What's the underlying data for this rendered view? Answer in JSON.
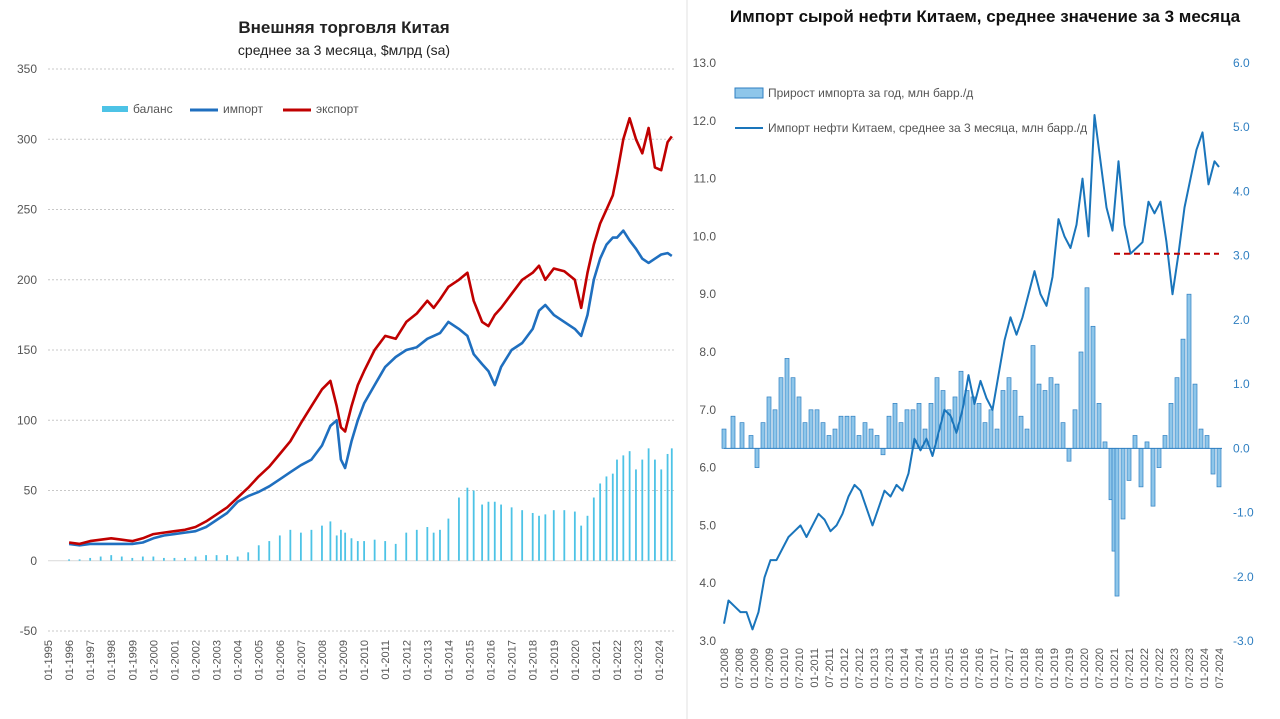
{
  "chart_data": [
    {
      "type": "line",
      "title": "Внешняя торговля Китая",
      "subtitle": "среднее за 3 месяца, $млрд (sa)",
      "ylim": [
        -50,
        350
      ],
      "yticks": [
        -50,
        0,
        50,
        100,
        150,
        200,
        250,
        300,
        350
      ],
      "xlim": [
        1995,
        2024.8
      ],
      "xticks": [
        "01-1995",
        "01-1996",
        "01-1997",
        "01-1998",
        "01-1999",
        "01-2000",
        "01-2001",
        "01-2002",
        "01-2003",
        "01-2004",
        "01-2005",
        "01-2006",
        "01-2007",
        "01-2008",
        "01-2009",
        "01-2010",
        "01-2011",
        "01-2012",
        "01-2013",
        "01-2014",
        "01-2015",
        "01-2016",
        "01-2017",
        "01-2018",
        "01-2019",
        "01-2020",
        "01-2021",
        "01-2022",
        "01-2023",
        "01-2024"
      ],
      "grid": true,
      "legend": {
        "placement": "top-left",
        "entries": [
          "баланс",
          "импорт",
          "экспорт"
        ]
      },
      "colors": {
        "balance": "#4dc3e6",
        "import": "#1f6fbf",
        "export": "#c00000"
      },
      "series": [
        {
          "name": "экспорт",
          "type": "line",
          "x": [
            1996.0,
            1996.5,
            1997.0,
            1997.5,
            1998.0,
            1998.5,
            1999.0,
            1999.5,
            2000.0,
            2000.5,
            2001.0,
            2001.5,
            2002.0,
            2002.5,
            2003.0,
            2003.5,
            2004.0,
            2004.5,
            2005.0,
            2005.5,
            2006.0,
            2006.5,
            2007.0,
            2007.5,
            2008.0,
            2008.4,
            2008.7,
            2008.9,
            2009.1,
            2009.4,
            2009.7,
            2010.0,
            2010.5,
            2011.0,
            2011.5,
            2012.0,
            2012.5,
            2013.0,
            2013.3,
            2013.6,
            2014.0,
            2014.5,
            2014.9,
            2015.2,
            2015.6,
            2015.9,
            2016.2,
            2016.5,
            2017.0,
            2017.5,
            2018.0,
            2018.3,
            2018.6,
            2019.0,
            2019.5,
            2020.0,
            2020.3,
            2020.6,
            2020.9,
            2021.2,
            2021.5,
            2021.8,
            2022.0,
            2022.3,
            2022.6,
            2022.9,
            2023.2,
            2023.5,
            2023.8,
            2024.1,
            2024.4,
            2024.6
          ],
          "values": [
            13,
            12,
            14,
            15,
            16,
            15,
            14,
            16,
            19,
            20,
            21,
            22,
            24,
            28,
            33,
            38,
            45,
            52,
            60,
            67,
            76,
            85,
            98,
            110,
            122,
            128,
            110,
            95,
            92,
            110,
            125,
            135,
            150,
            160,
            158,
            170,
            176,
            185,
            180,
            186,
            195,
            200,
            205,
            185,
            170,
            167,
            175,
            180,
            190,
            200,
            205,
            210,
            200,
            208,
            206,
            200,
            180,
            205,
            225,
            240,
            250,
            260,
            275,
            300,
            315,
            300,
            290,
            308,
            280,
            278,
            298,
            302
          ]
        },
        {
          "name": "импорт",
          "type": "line",
          "x": [
            1996.0,
            1996.5,
            1997.0,
            1997.5,
            1998.0,
            1998.5,
            1999.0,
            1999.5,
            2000.0,
            2000.5,
            2001.0,
            2001.5,
            2002.0,
            2002.5,
            2003.0,
            2003.5,
            2004.0,
            2004.5,
            2005.0,
            2005.5,
            2006.0,
            2006.5,
            2007.0,
            2007.5,
            2008.0,
            2008.4,
            2008.7,
            2008.9,
            2009.1,
            2009.4,
            2009.7,
            2010.0,
            2010.5,
            2011.0,
            2011.5,
            2012.0,
            2012.5,
            2013.0,
            2013.3,
            2013.6,
            2014.0,
            2014.5,
            2014.9,
            2015.2,
            2015.6,
            2015.9,
            2016.2,
            2016.5,
            2017.0,
            2017.5,
            2018.0,
            2018.3,
            2018.6,
            2019.0,
            2019.5,
            2020.0,
            2020.3,
            2020.6,
            2020.9,
            2021.2,
            2021.5,
            2021.8,
            2022.0,
            2022.3,
            2022.6,
            2022.9,
            2023.2,
            2023.5,
            2023.8,
            2024.1,
            2024.4,
            2024.6
          ],
          "values": [
            12,
            11,
            12,
            12,
            12,
            12,
            12,
            13,
            16,
            18,
            19,
            20,
            21,
            24,
            29,
            34,
            42,
            46,
            49,
            53,
            58,
            63,
            68,
            72,
            82,
            96,
            100,
            72,
            66,
            85,
            100,
            112,
            125,
            138,
            145,
            150,
            152,
            158,
            160,
            162,
            170,
            165,
            160,
            147,
            140,
            135,
            125,
            138,
            150,
            155,
            165,
            178,
            182,
            175,
            170,
            165,
            160,
            175,
            200,
            215,
            225,
            230,
            230,
            235,
            228,
            222,
            215,
            212,
            215,
            218,
            219,
            217
          ]
        },
        {
          "name": "баланс",
          "type": "bar",
          "x": [
            1996.0,
            1996.5,
            1997.0,
            1997.5,
            1998.0,
            1998.5,
            1999.0,
            1999.5,
            2000.0,
            2000.5,
            2001.0,
            2001.5,
            2002.0,
            2002.5,
            2003.0,
            2003.5,
            2004.0,
            2004.5,
            2005.0,
            2005.5,
            2006.0,
            2006.5,
            2007.0,
            2007.5,
            2008.0,
            2008.4,
            2008.7,
            2008.9,
            2009.1,
            2009.4,
            2009.7,
            2010.0,
            2010.5,
            2011.0,
            2011.5,
            2012.0,
            2012.5,
            2013.0,
            2013.3,
            2013.6,
            2014.0,
            2014.5,
            2014.9,
            2015.2,
            2015.6,
            2015.9,
            2016.2,
            2016.5,
            2017.0,
            2017.5,
            2018.0,
            2018.3,
            2018.6,
            2019.0,
            2019.5,
            2020.0,
            2020.3,
            2020.6,
            2020.9,
            2021.2,
            2021.5,
            2021.8,
            2022.0,
            2022.3,
            2022.6,
            2022.9,
            2023.2,
            2023.5,
            2023.8,
            2024.1,
            2024.4,
            2024.6
          ],
          "values": [
            1,
            1,
            2,
            3,
            4,
            3,
            2,
            3,
            3,
            2,
            2,
            2,
            3,
            4,
            4,
            4,
            3,
            6,
            11,
            14,
            18,
            22,
            20,
            22,
            25,
            28,
            18,
            22,
            20,
            16,
            14,
            14,
            15,
            14,
            12,
            20,
            22,
            24,
            20,
            22,
            30,
            45,
            52,
            50,
            40,
            42,
            42,
            40,
            38,
            36,
            34,
            32,
            33,
            36,
            36,
            35,
            25,
            32,
            45,
            55,
            60,
            62,
            72,
            75,
            78,
            65,
            72,
            80,
            72,
            65,
            76,
            80
          ]
        }
      ]
    },
    {
      "type": "bar",
      "title": "Импорт сырой нефти Китаем, среднее значение за 3 месяца",
      "ylim_left": [
        3.0,
        13.0
      ],
      "yticks_left": [
        3.0,
        4.0,
        5.0,
        6.0,
        7.0,
        8.0,
        9.0,
        10.0,
        11.0,
        12.0,
        13.0
      ],
      "ylim_right": [
        -3.0,
        6.0
      ],
      "yticks_right": [
        -3.0,
        -2.0,
        -1.0,
        0.0,
        1.0,
        2.0,
        3.0,
        4.0,
        5.0,
        6.0
      ],
      "xlim": [
        2008.0,
        2024.6
      ],
      "xticks": [
        "01-2008",
        "07-2008",
        "01-2009",
        "07-2009",
        "01-2010",
        "07-2010",
        "01-2011",
        "07-2011",
        "01-2012",
        "07-2012",
        "01-2013",
        "07-2013",
        "01-2014",
        "07-2014",
        "01-2015",
        "07-2015",
        "01-2016",
        "07-2016",
        "01-2017",
        "07-2017",
        "01-2018",
        "07-2018",
        "01-2019",
        "07-2019",
        "01-2020",
        "07-2020",
        "01-2021",
        "07-2021",
        "01-2022",
        "07-2022",
        "01-2023",
        "07-2023",
        "01-2024",
        "07-2024"
      ],
      "grid": false,
      "legend": {
        "placement": "top-left",
        "entries": [
          "Прирост импорта за год, млн барр./д",
          "Импорт нефти Китаем, среднее за 3 месяца, млн барр./д"
        ]
      },
      "colors": {
        "bars": "#8ec6ea",
        "bar_edge": "#2f7fc1",
        "line": "#1a75bb",
        "reference": "#c00000"
      },
      "reference_line": {
        "value": 9.7,
        "x_from": 2021.0,
        "x_to": 2024.5
      },
      "series": [
        {
          "name": "Импорт нефти Китаем, среднее за 3 месяца, млн барр./д",
          "axis": "left",
          "type": "line",
          "x": [
            2008.0,
            2008.15,
            2008.35,
            2008.55,
            2008.75,
            2008.95,
            2009.15,
            2009.35,
            2009.55,
            2009.75,
            2009.95,
            2010.15,
            2010.35,
            2010.55,
            2010.75,
            2010.95,
            2011.15,
            2011.35,
            2011.55,
            2011.75,
            2011.95,
            2012.15,
            2012.35,
            2012.55,
            2012.75,
            2012.95,
            2013.15,
            2013.35,
            2013.55,
            2013.75,
            2013.95,
            2014.15,
            2014.35,
            2014.55,
            2014.75,
            2014.95,
            2015.15,
            2015.35,
            2015.55,
            2015.75,
            2015.95,
            2016.15,
            2016.35,
            2016.55,
            2016.75,
            2016.95,
            2017.15,
            2017.35,
            2017.55,
            2017.75,
            2017.95,
            2018.15,
            2018.35,
            2018.55,
            2018.75,
            2018.95,
            2019.15,
            2019.35,
            2019.55,
            2019.75,
            2019.95,
            2020.15,
            2020.35,
            2020.55,
            2020.75,
            2020.95,
            2021.15,
            2021.35,
            2021.55,
            2021.75,
            2021.95,
            2022.15,
            2022.35,
            2022.55,
            2022.75,
            2022.95,
            2023.15,
            2023.35,
            2023.55,
            2023.75,
            2023.95,
            2024.15,
            2024.35,
            2024.5
          ],
          "values": [
            3.3,
            3.7,
            3.6,
            3.5,
            3.5,
            3.2,
            3.5,
            4.1,
            4.4,
            4.4,
            4.6,
            4.8,
            4.9,
            5.0,
            4.8,
            5.0,
            5.2,
            5.1,
            4.9,
            5.0,
            5.2,
            5.5,
            5.7,
            5.6,
            5.3,
            5.0,
            5.3,
            5.6,
            5.5,
            5.7,
            5.6,
            5.9,
            6.5,
            6.3,
            6.5,
            6.2,
            6.6,
            7.0,
            6.9,
            6.6,
            7.0,
            7.6,
            7.1,
            7.5,
            7.2,
            7.0,
            7.6,
            8.2,
            8.6,
            8.3,
            8.6,
            9.0,
            9.4,
            9.0,
            8.8,
            9.3,
            10.3,
            10.0,
            9.8,
            10.2,
            11.0,
            10.0,
            12.1,
            11.3,
            10.5,
            10.1,
            11.3,
            10.2,
            9.7,
            9.8,
            9.9,
            10.6,
            10.4,
            10.6,
            9.9,
            9.0,
            9.7,
            10.5,
            11.0,
            11.5,
            11.8,
            10.9,
            11.3,
            11.2
          ]
        },
        {
          "name": "Прирост импорта за год, млн барр./д",
          "axis": "right",
          "type": "bar",
          "x": [
            2008.0,
            2008.3,
            2008.6,
            2008.9,
            2009.1,
            2009.3,
            2009.5,
            2009.7,
            2009.9,
            2010.1,
            2010.3,
            2010.5,
            2010.7,
            2010.9,
            2011.1,
            2011.3,
            2011.5,
            2011.7,
            2011.9,
            2012.1,
            2012.3,
            2012.5,
            2012.7,
            2012.9,
            2013.1,
            2013.3,
            2013.5,
            2013.7,
            2013.9,
            2014.1,
            2014.3,
            2014.5,
            2014.7,
            2014.9,
            2015.1,
            2015.3,
            2015.5,
            2015.7,
            2015.9,
            2016.1,
            2016.3,
            2016.5,
            2016.7,
            2016.9,
            2017.1,
            2017.3,
            2017.5,
            2017.7,
            2017.9,
            2018.1,
            2018.3,
            2018.5,
            2018.7,
            2018.9,
            2019.1,
            2019.3,
            2019.5,
            2019.7,
            2019.9,
            2020.1,
            2020.3,
            2020.5,
            2020.7,
            2020.9,
            2021.0,
            2021.1,
            2021.3,
            2021.5,
            2021.7,
            2021.9,
            2022.1,
            2022.3,
            2022.5,
            2022.7,
            2022.9,
            2023.1,
            2023.3,
            2023.5,
            2023.7,
            2023.9,
            2024.1,
            2024.3,
            2024.5
          ],
          "values": [
            0.3,
            0.5,
            0.4,
            0.2,
            -0.3,
            0.4,
            0.8,
            0.6,
            1.1,
            1.4,
            1.1,
            0.8,
            0.4,
            0.6,
            0.6,
            0.4,
            0.2,
            0.3,
            0.5,
            0.5,
            0.5,
            0.2,
            0.4,
            0.3,
            0.2,
            -0.1,
            0.5,
            0.7,
            0.4,
            0.6,
            0.6,
            0.7,
            0.3,
            0.7,
            1.1,
            0.9,
            0.6,
            0.8,
            1.2,
            0.9,
            0.8,
            0.7,
            0.4,
            0.6,
            0.3,
            0.9,
            1.1,
            0.9,
            0.5,
            0.3,
            1.6,
            1.0,
            0.9,
            1.1,
            1.0,
            0.4,
            -0.2,
            0.6,
            1.5,
            2.5,
            1.9,
            0.7,
            0.1,
            -0.8,
            -1.6,
            -2.3,
            -1.1,
            -0.5,
            0.2,
            -0.6,
            0.1,
            -0.9,
            -0.3,
            0.2,
            0.7,
            1.1,
            1.7,
            2.4,
            1.0,
            0.3,
            0.2,
            -0.4,
            -0.6
          ]
        }
      ]
    }
  ]
}
